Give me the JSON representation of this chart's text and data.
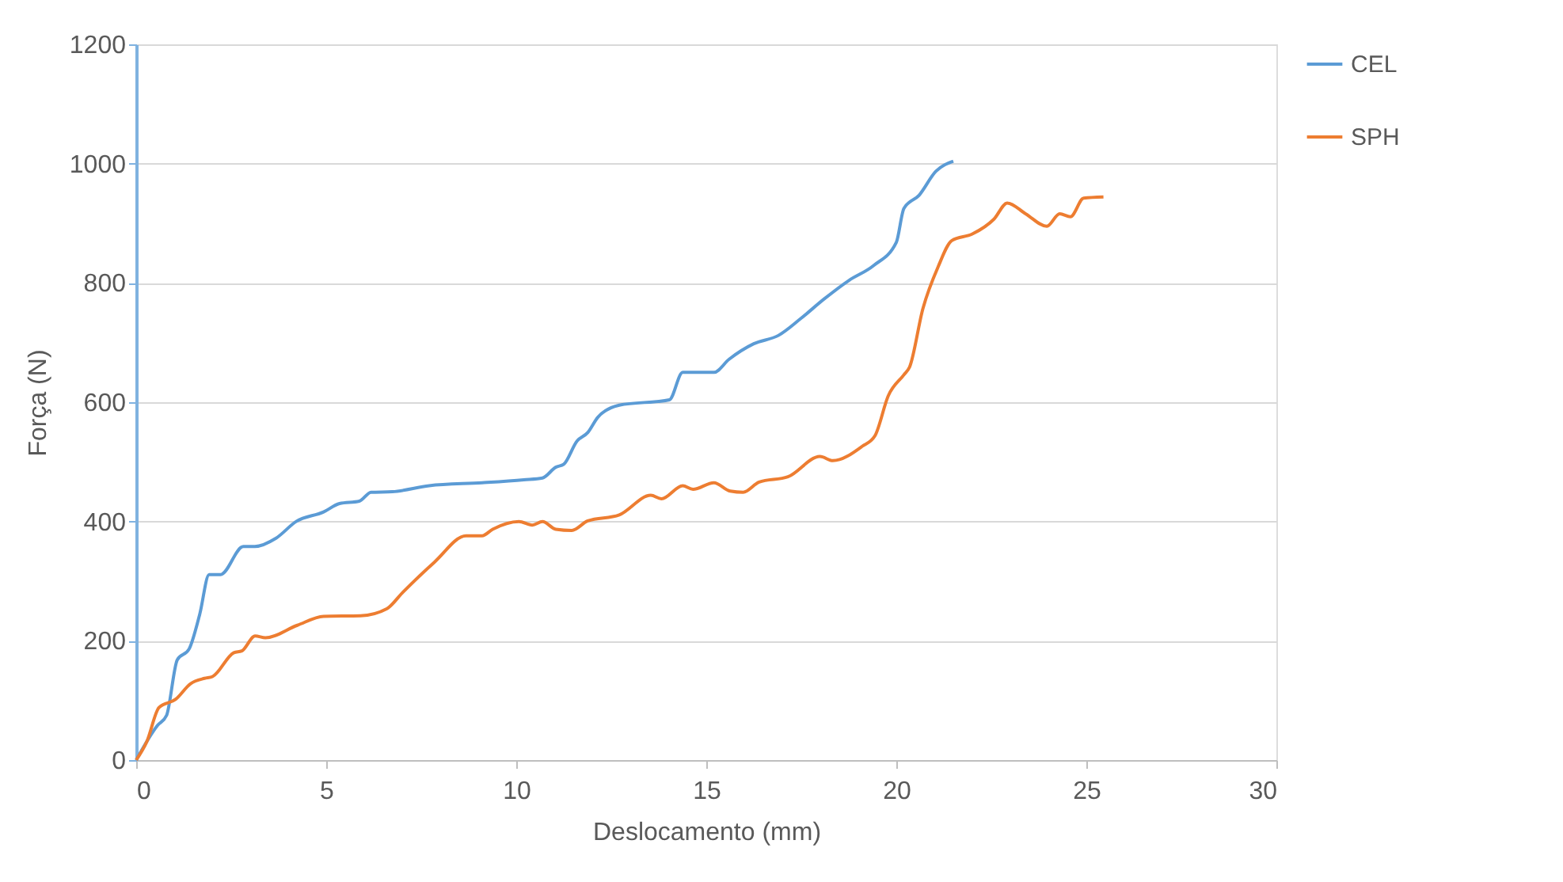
{
  "chart_data": {
    "type": "line",
    "xlabel": "Deslocamento (mm)",
    "ylabel": "Força (N)",
    "xlim": [
      0,
      30
    ],
    "xticks": [
      0,
      5,
      10,
      15,
      20,
      25,
      30
    ],
    "ylim": [
      0,
      1200
    ],
    "yticks": [
      0,
      200,
      400,
      600,
      800,
      1000,
      1200
    ],
    "grid": "y",
    "legend": "right",
    "line_style": "solid",
    "marker": "none",
    "series": [
      {
        "name": "CEL",
        "color": "#5b9bd5",
        "x": [
          0,
          0.56,
          0.8,
          1.08,
          1.39,
          1.67,
          1.92,
          2.22,
          2.82,
          3.12,
          3.68,
          4.21,
          4.93,
          5.35,
          5.87,
          6.18,
          6.74,
          7.71,
          9.1,
          10.2,
          10.69,
          11.04,
          11.25,
          11.6,
          11.88,
          12.15,
          12.71,
          14.03,
          14.38,
          15.2,
          15.6,
          16.25,
          16.9,
          17.5,
          18.1,
          18.75,
          19.4,
          20.0,
          20.2,
          20.6,
          21.04,
          21.5
        ],
        "values": [
          0,
          58,
          75,
          168,
          186,
          244,
          311,
          311,
          358,
          358,
          372,
          400,
          416,
          430,
          434,
          449,
          450,
          460,
          465,
          470,
          473,
          491,
          496,
          535,
          549,
          575,
          595,
          604,
          650,
          650,
          672,
          698,
          712,
          741,
          773,
          804,
          829,
          868,
          925,
          947,
          987,
          1004
        ]
      },
      {
        "name": "SPH",
        "color": "#ed7d31",
        "x": [
          0,
          0.28,
          0.6,
          1.04,
          1.43,
          1.8,
          2.01,
          2.57,
          2.78,
          3.13,
          3.4,
          4.24,
          4.93,
          5.9,
          6.6,
          7.01,
          7.85,
          8.68,
          9.1,
          9.38,
          10.07,
          10.42,
          10.69,
          11.04,
          11.46,
          11.88,
          12.71,
          13.54,
          13.82,
          14.38,
          14.65,
          15.2,
          15.63,
          15.97,
          16.39,
          17.15,
          17.99,
          18.33,
          19.1,
          19.44,
          19.79,
          20.2,
          20.35,
          20.7,
          21.1,
          21.46,
          22.0,
          22.57,
          22.92,
          23.4,
          23.96,
          24.3,
          24.58,
          24.93,
          25.45
        ],
        "values": [
          0,
          31,
          88,
          102,
          128,
          137,
          140,
          180,
          183,
          208,
          205,
          226,
          241,
          242,
          254,
          281,
          332,
          376,
          376,
          387,
          400,
          394,
          400,
          387,
          385,
          401,
          411,
          444,
          438,
          460,
          454,
          465,
          451,
          449,
          466,
          475,
          509,
          502,
          526,
          544,
          611,
          646,
          659,
          757,
          827,
          871,
          882,
          907,
          934,
          916,
          895,
          916,
          911,
          942,
          944
        ]
      }
    ]
  }
}
